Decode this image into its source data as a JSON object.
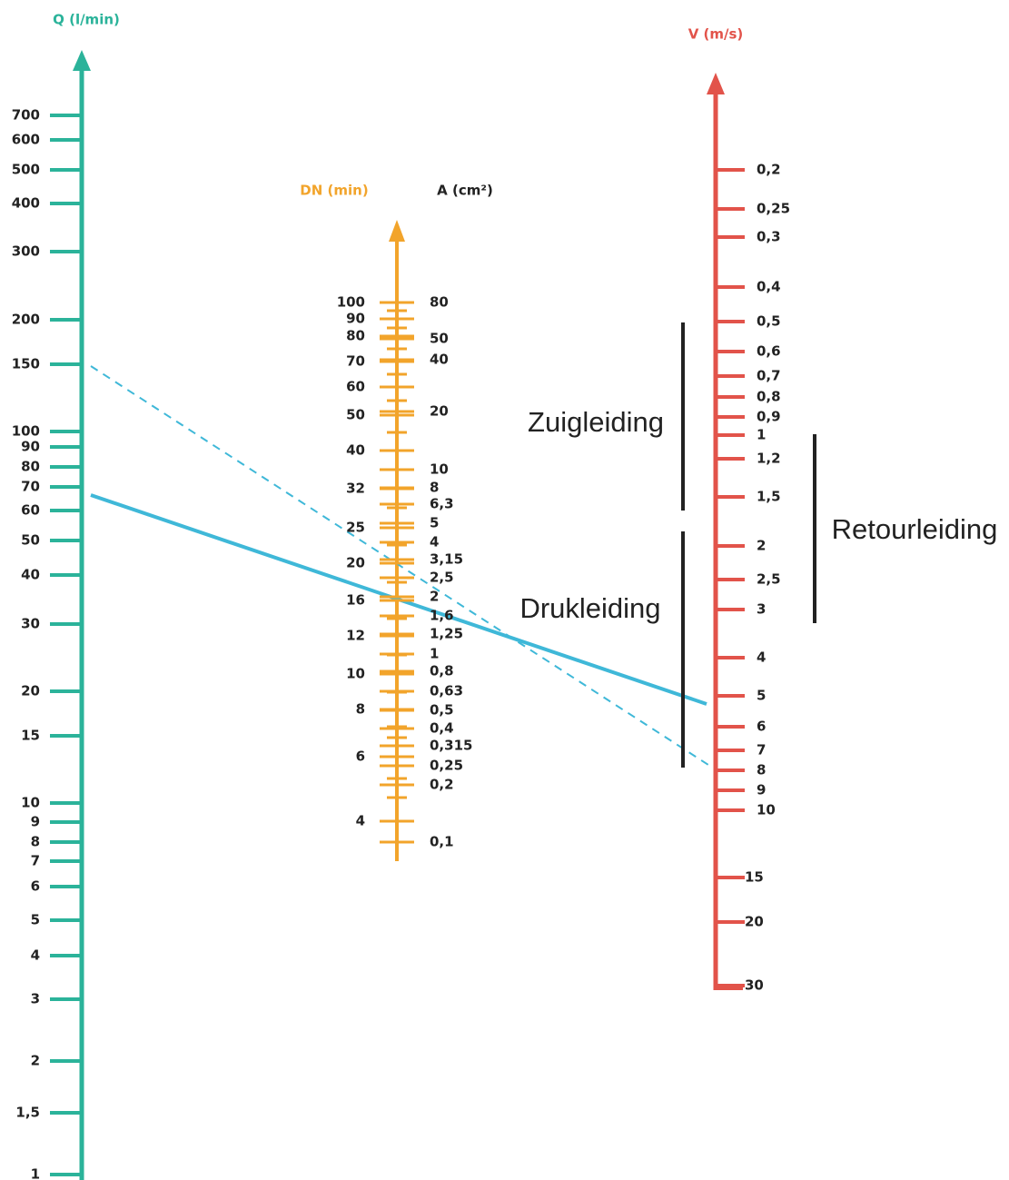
{
  "axes": {
    "q": {
      "title": "Q (l/min)",
      "ticks": [
        "700",
        "600",
        "500",
        "400",
        "300",
        "200",
        "150",
        "100",
        "90",
        "80",
        "70",
        "60",
        "50",
        "40",
        "30",
        "20",
        "15",
        "10",
        "9",
        "8",
        "7",
        "6",
        "5",
        "4",
        "3",
        "2",
        "1,5",
        "1"
      ]
    },
    "dn": {
      "title": "DN (min)",
      "ticks": [
        "100",
        "90",
        "80",
        "70",
        "60",
        "50",
        "40",
        "32",
        "25",
        "20",
        "16",
        "12",
        "10",
        "8",
        "6",
        "4"
      ]
    },
    "area": {
      "title": "A (cm²)",
      "ticks": [
        "80",
        "50",
        "40",
        "20",
        "10",
        "8",
        "6,3",
        "5",
        "4",
        "3,15",
        "2,5",
        "2",
        "1,6",
        "1,25",
        "1",
        "0,8",
        "0,63",
        "0,5",
        "0,4",
        "0,315",
        "0,25",
        "0,2",
        "0,1"
      ]
    },
    "v": {
      "title": "V (m/s)",
      "ticks": [
        "0,2",
        "0,25",
        "0,3",
        "0,4",
        "0,5",
        "0,6",
        "0,7",
        "0,8",
        "0,9",
        "1",
        "1,2",
        "1,5",
        "2",
        "2,5",
        "3",
        "4",
        "5",
        "6",
        "7",
        "8",
        "9",
        "10",
        "15",
        "20",
        "30"
      ]
    }
  },
  "labels": {
    "suction": "Zuigleiding",
    "pressure": "Drukleiding",
    "return": "Retourleiding"
  }
}
